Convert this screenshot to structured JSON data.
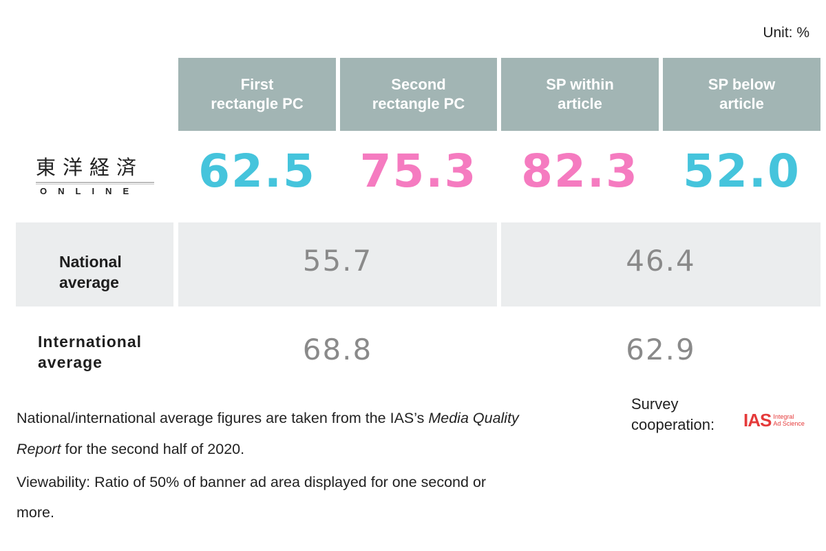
{
  "unit_label": "Unit: %",
  "brand": {
    "name_kanji": "東洋経済",
    "name_sub": "ONLINE"
  },
  "columns": [
    {
      "line1": "First",
      "line2": "rectangle PC"
    },
    {
      "line1": "Second",
      "line2": "rectangle PC"
    },
    {
      "line1": "SP within",
      "line2": "article"
    },
    {
      "line1": "SP below",
      "line2": "article"
    }
  ],
  "chart_data": {
    "type": "table",
    "categories": [
      "First rectangle PC",
      "Second rectangle PC",
      "SP within article",
      "SP below article"
    ],
    "brand_values": [
      "62.5",
      "75.3",
      "82.3",
      "52.0"
    ],
    "national": {
      "label_line1": "National",
      "label_line2": "average",
      "pc": "55.7",
      "sp": "46.4"
    },
    "international": {
      "label_line1": "International",
      "label_line2": "average",
      "pc": "68.8",
      "sp": "62.9"
    }
  },
  "colors": {
    "blue": "#45c4dc",
    "pink": "#f57bc0",
    "header_bg": "#a2b5b4",
    "band_bg": "#ebedee"
  },
  "notes": {
    "line1_a": "National/international average figures are taken from the IAS’s ",
    "line1_italic": "Media Quality",
    "line2_italic": "Report",
    "line2_b": " for the second half of 2020.",
    "line3": "Viewability: Ratio of 50% of banner ad area displayed for one second or",
    "line4": "more."
  },
  "survey": {
    "line1": "Survey",
    "line2": "cooperation:",
    "logo_mark": "IAS",
    "logo_word1": "Integral",
    "logo_word2": "Ad Science"
  }
}
